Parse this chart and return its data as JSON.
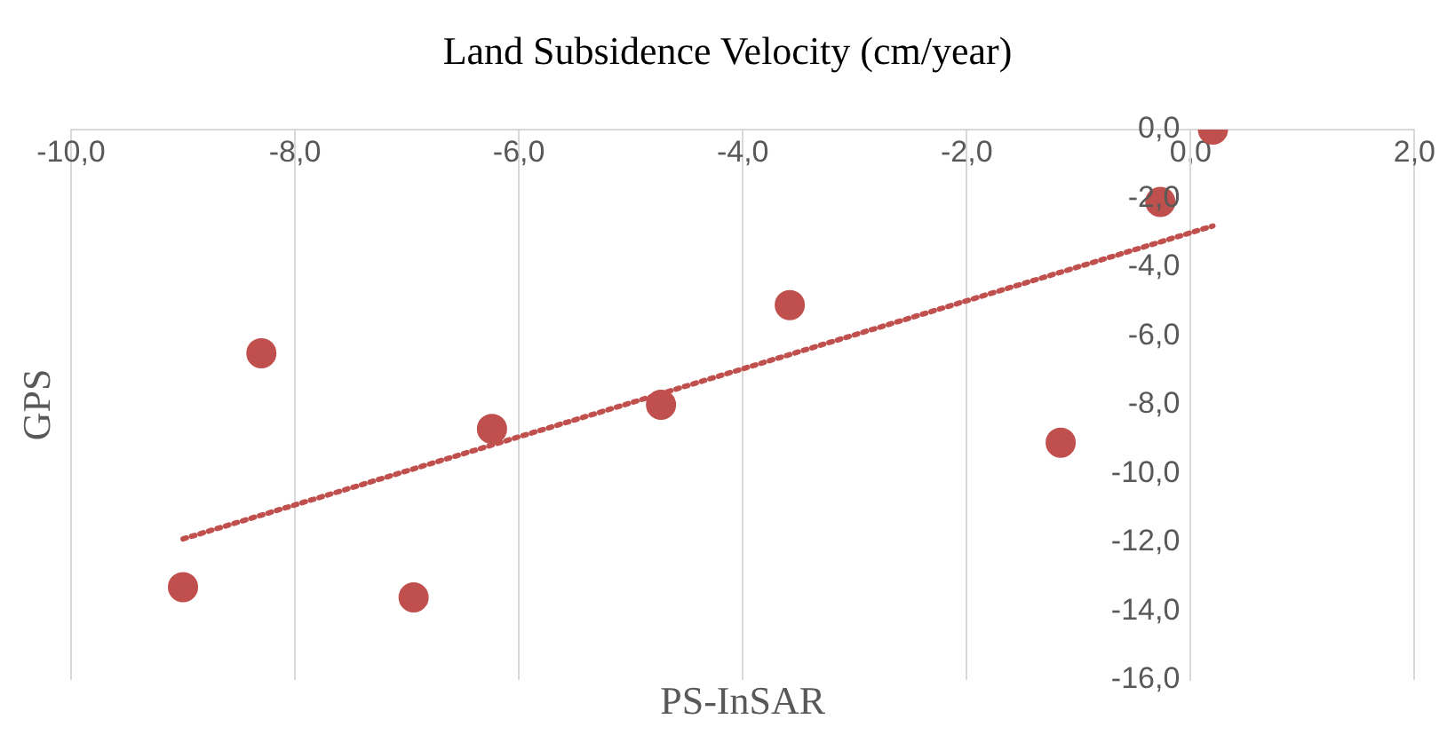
{
  "chart_data": {
    "type": "scatter",
    "title": "Land Subsidence Velocity (cm/year)",
    "xlabel": "PS-InSAR",
    "ylabel": "GPS",
    "xlim": [
      -10,
      2
    ],
    "ylim": [
      -16,
      0
    ],
    "xticks": [
      {
        "value": -10,
        "label": "-10,0"
      },
      {
        "value": -8,
        "label": "-8,0"
      },
      {
        "value": -6,
        "label": "-6,0"
      },
      {
        "value": -4,
        "label": "-4,0"
      },
      {
        "value": -2,
        "label": "-2,0"
      },
      {
        "value": 0,
        "label": "0,0"
      },
      {
        "value": 2,
        "label": "2,0"
      }
    ],
    "yticks": [
      {
        "value": 0,
        "label": "0,0"
      },
      {
        "value": -2,
        "label": "-2,0"
      },
      {
        "value": -4,
        "label": "-4,0"
      },
      {
        "value": -6,
        "label": "-6,0"
      },
      {
        "value": -8,
        "label": "-8,0"
      },
      {
        "value": -10,
        "label": "-10,0"
      },
      {
        "value": -12,
        "label": "-12,0"
      },
      {
        "value": -14,
        "label": "-14,0"
      },
      {
        "value": -16,
        "label": "-16,0"
      }
    ],
    "grid": "x",
    "marker": "circle",
    "series": [
      {
        "color": "#c0504d",
        "x": [
          0.2,
          -0.27,
          -3.58,
          -8.3,
          -4.73,
          -6.24,
          -1.16,
          -9.0,
          -6.94
        ],
        "values": [
          0.0,
          -2.1,
          -5.1,
          -6.5,
          -8.0,
          -8.7,
          -9.1,
          -13.3,
          -13.6
        ]
      },
      {
        "type": "line",
        "color": "#c0504d",
        "line_style": "dotted",
        "marker": "none",
        "x": [
          -9.0,
          0.2
        ],
        "values": [
          -11.9,
          -2.8
        ]
      }
    ]
  }
}
